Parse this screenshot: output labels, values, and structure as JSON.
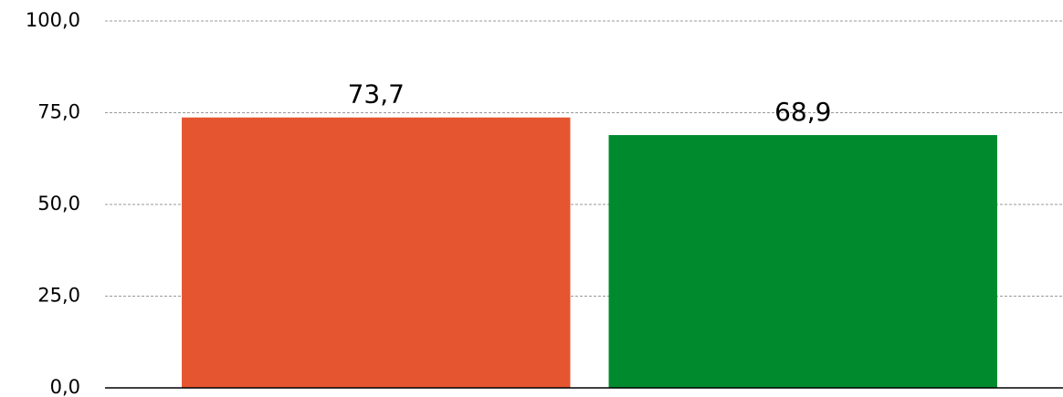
{
  "chart_data": {
    "type": "bar",
    "categories": [
      null,
      null
    ],
    "values": [
      73.7,
      68.9
    ],
    "value_labels": [
      "73,7",
      "68,9"
    ],
    "colors": [
      "#e55530",
      "#008a2e"
    ],
    "ylim": [
      0,
      100
    ],
    "yticks": [
      {
        "value": 0,
        "label": "0,0"
      },
      {
        "value": 25,
        "label": "25,0"
      },
      {
        "value": 50,
        "label": "50,0"
      },
      {
        "value": 75,
        "label": "75,0"
      },
      {
        "value": 100,
        "label": "100,0"
      }
    ],
    "grid": true
  }
}
